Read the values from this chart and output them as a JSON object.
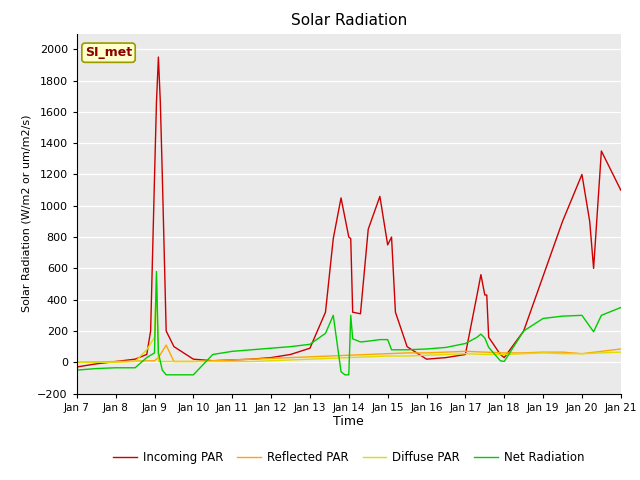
{
  "title": "Solar Radiation",
  "xlabel": "Time",
  "ylabel": "Solar Radiation (W/m2 or um/m2/s)",
  "xlim": [
    0,
    14
  ],
  "ylim": [
    -200,
    2100
  ],
  "yticks": [
    -200,
    0,
    200,
    400,
    600,
    800,
    1000,
    1200,
    1400,
    1600,
    1800,
    2000
  ],
  "xtick_labels": [
    "Jan 7",
    "Jan 8",
    "Jan 9",
    "Jan 10",
    "Jan 11",
    "Jan 12",
    "Jan 13",
    "Jan 14",
    "Jan 15",
    "Jan 16",
    "Jan 17",
    "Jan 18",
    "Jan 19",
    "Jan 20",
    "Jan 21"
  ],
  "annotation_text": "SI_met",
  "annotation_color": "#8B0000",
  "annotation_bg": "#FFFFCC",
  "bg_color": "#EAEAEA",
  "fig_bg": "#FFFFFF",
  "incoming_par": {
    "label": "Incoming PAR",
    "color": "#CC0000",
    "x": [
      0,
      0.5,
      1.0,
      1.5,
      1.8,
      1.9,
      2.0,
      2.05,
      2.1,
      2.15,
      2.2,
      2.3,
      2.5,
      3.0,
      3.5,
      4.0,
      4.5,
      5.0,
      5.5,
      6.0,
      6.4,
      6.6,
      6.8,
      7.0,
      7.05,
      7.1,
      7.3,
      7.5,
      7.8,
      8.0,
      8.1,
      8.2,
      8.5,
      9.0,
      9.5,
      10.0,
      10.3,
      10.4,
      10.5,
      10.55,
      10.6,
      10.9,
      11.0,
      11.5,
      12.0,
      12.5,
      13.0,
      13.2,
      13.3,
      13.5,
      14.0
    ],
    "y": [
      -30,
      -10,
      5,
      20,
      50,
      200,
      1180,
      1660,
      1950,
      1660,
      1200,
      200,
      100,
      20,
      10,
      15,
      20,
      30,
      50,
      90,
      320,
      790,
      1050,
      800,
      790,
      320,
      310,
      850,
      1060,
      750,
      800,
      320,
      100,
      20,
      30,
      50,
      430,
      560,
      430,
      430,
      160,
      50,
      30,
      200,
      550,
      900,
      1200,
      900,
      600,
      1350,
      1100
    ]
  },
  "reflected_par": {
    "label": "Reflected PAR",
    "color": "#FFA500",
    "x": [
      0,
      0.5,
      1.0,
      1.5,
      2.0,
      2.1,
      2.3,
      2.5,
      3.0,
      3.5,
      4.0,
      4.5,
      5.0,
      5.5,
      6.0,
      6.5,
      7.0,
      7.5,
      8.0,
      8.5,
      9.0,
      9.5,
      10.0,
      10.5,
      11.0,
      11.5,
      12.0,
      12.5,
      13.0,
      13.5,
      14.0
    ],
    "y": [
      0,
      2,
      5,
      8,
      10,
      30,
      110,
      5,
      5,
      10,
      15,
      20,
      25,
      30,
      35,
      40,
      45,
      50,
      55,
      60,
      60,
      65,
      70,
      65,
      60,
      60,
      65,
      65,
      55,
      70,
      85
    ]
  },
  "diffuse_par": {
    "label": "Diffuse PAR",
    "color": "#DDDD00",
    "x": [
      0,
      0.5,
      1.0,
      1.5,
      1.8,
      2.0,
      2.05,
      2.1,
      2.3,
      2.5,
      3.0,
      3.5,
      4.0,
      4.5,
      5.0,
      5.5,
      6.0,
      6.5,
      7.0,
      7.5,
      8.0,
      8.5,
      9.0,
      9.5,
      10.0,
      10.5,
      11.0,
      11.5,
      12.0,
      12.5,
      13.0,
      13.5,
      14.0
    ],
    "y": [
      0,
      0,
      0,
      5,
      80,
      160,
      550,
      5,
      5,
      5,
      5,
      5,
      5,
      5,
      10,
      15,
      20,
      25,
      30,
      35,
      40,
      40,
      45,
      50,
      55,
      50,
      50,
      55,
      60,
      55,
      55,
      60,
      65
    ]
  },
  "net_radiation": {
    "label": "Net Radiation",
    "color": "#00CC00",
    "x": [
      0,
      0.5,
      1.0,
      1.5,
      1.8,
      2.0,
      2.05,
      2.1,
      2.2,
      2.3,
      2.5,
      2.7,
      3.0,
      3.5,
      4.0,
      4.5,
      5.0,
      5.5,
      6.0,
      6.4,
      6.6,
      6.8,
      6.9,
      7.0,
      7.05,
      7.1,
      7.3,
      7.5,
      7.8,
      8.0,
      8.1,
      8.5,
      9.0,
      9.5,
      10.0,
      10.3,
      10.4,
      10.5,
      10.6,
      10.9,
      11.0,
      11.5,
      12.0,
      12.5,
      13.0,
      13.3,
      13.5,
      14.0
    ],
    "y": [
      -50,
      -40,
      -35,
      -35,
      30,
      60,
      580,
      60,
      -50,
      -80,
      -80,
      -80,
      -80,
      50,
      70,
      80,
      90,
      100,
      115,
      185,
      300,
      -60,
      -80,
      -80,
      300,
      150,
      130,
      135,
      145,
      145,
      80,
      80,
      85,
      95,
      120,
      160,
      180,
      155,
      95,
      10,
      5,
      200,
      280,
      295,
      300,
      195,
      300,
      350
    ]
  }
}
